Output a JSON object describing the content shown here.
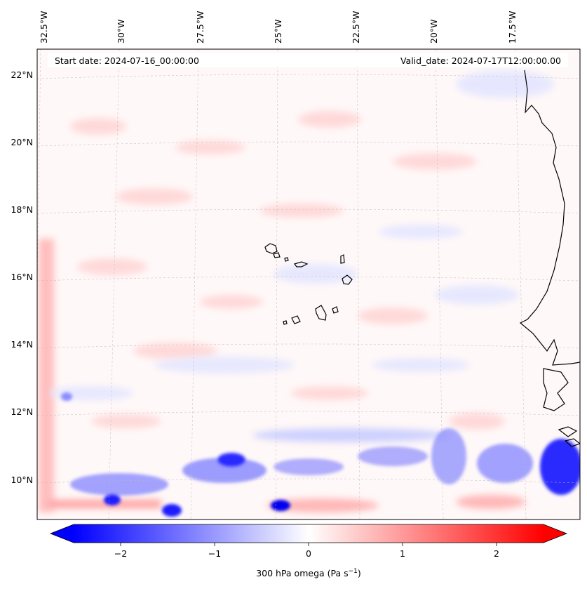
{
  "map": {
    "start_date": "Start date: 2024-07-16_00:00:00",
    "valid_date": "Valid_date: 2024-07-17T12:00:00.00",
    "lon_labels": [
      "32.5°W",
      "30°W",
      "27.5°W",
      "25°W",
      "22.5°W",
      "20°W",
      "17.5°W"
    ],
    "lat_labels": [
      "22°N",
      "20°N",
      "18°N",
      "16°N",
      "14°N",
      "12°N",
      "10°N"
    ],
    "variable": "300 hPa omega"
  },
  "colorbar": {
    "label_prefix": "300 hPa omega (Pa s",
    "label_exp": "−1",
    "label_suffix": ")",
    "ticks": [
      "−2",
      "−1",
      "0",
      "1",
      "2"
    ],
    "tick_values": [
      -2,
      -1,
      0,
      1,
      2
    ],
    "range": [
      -2.5,
      2.5
    ],
    "neg_color": "#0000ff",
    "pos_color": "#ff0000",
    "mid_color": "#ffffff"
  }
}
